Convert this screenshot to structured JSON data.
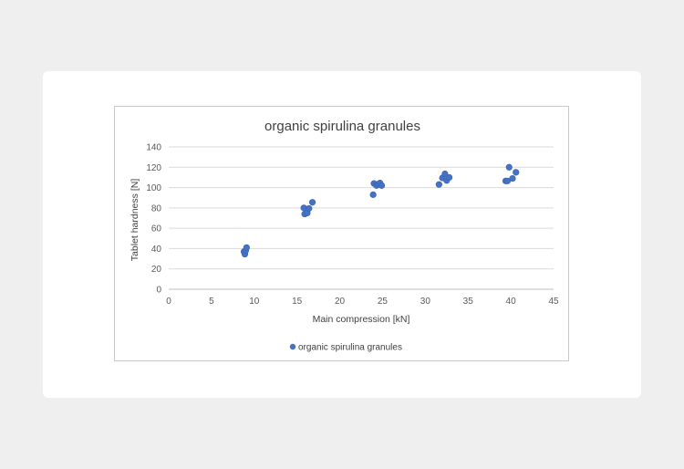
{
  "chart_data": {
    "type": "scatter",
    "title": "organic spirulina granules",
    "xlabel": "Main compression  [kN]",
    "ylabel": "Tablet hardness [N]",
    "xlim": [
      0,
      45
    ],
    "ylim": [
      0,
      140
    ],
    "xticks": [
      0,
      5,
      10,
      15,
      20,
      25,
      30,
      35,
      40,
      45
    ],
    "yticks": [
      0,
      20,
      40,
      60,
      80,
      100,
      120,
      140
    ],
    "grid": "horizontal",
    "legend_position": "bottom",
    "marker_color": "#4472c4",
    "series": [
      {
        "name": "organic spirulina granules",
        "points": [
          [
            8.8,
            37
          ],
          [
            8.9,
            34.5
          ],
          [
            9.0,
            38
          ],
          [
            9.1,
            41
          ],
          [
            15.8,
            80
          ],
          [
            15.9,
            74
          ],
          [
            16.2,
            75
          ],
          [
            16.4,
            79.5
          ],
          [
            16.8,
            85.5
          ],
          [
            23.9,
            93
          ],
          [
            24.0,
            104
          ],
          [
            24.3,
            102
          ],
          [
            24.5,
            103.5
          ],
          [
            24.7,
            104.5
          ],
          [
            24.9,
            102
          ],
          [
            31.6,
            103
          ],
          [
            32.0,
            109.5
          ],
          [
            32.3,
            113.5
          ],
          [
            32.5,
            107
          ],
          [
            32.8,
            110
          ],
          [
            39.4,
            106.5
          ],
          [
            39.6,
            106.5
          ],
          [
            39.8,
            120
          ],
          [
            40.2,
            109
          ],
          [
            40.6,
            115
          ]
        ]
      }
    ]
  }
}
